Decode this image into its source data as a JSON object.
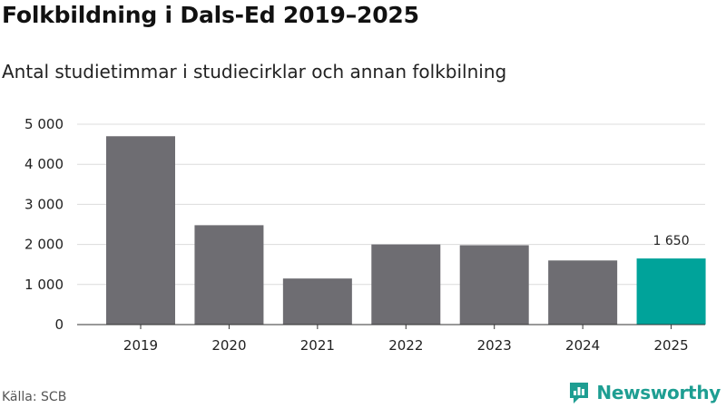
{
  "title": "Folkbildning i Dals-Ed 2019–2025",
  "subtitle": "Antal studietimmar i studiecirklar och annan folkbilning",
  "source": "Källa: SCB",
  "brand": {
    "name": "Newsworthy",
    "icon": "newsworthy-logo-icon",
    "color": "#1e9e92"
  },
  "colors": {
    "bar": "#6e6d72",
    "highlight": "#00a39a",
    "grid": "#dcdcdc",
    "axis": "#333333"
  },
  "chart_data": {
    "type": "bar",
    "title": "Folkbildning i Dals-Ed 2019–2025",
    "subtitle": "Antal studietimmar i studiecirklar och annan folkbilning",
    "xlabel": "",
    "ylabel": "",
    "categories": [
      "2019",
      "2020",
      "2021",
      "2022",
      "2023",
      "2024",
      "2025"
    ],
    "values": [
      4700,
      2480,
      1150,
      2000,
      1980,
      1600,
      1650
    ],
    "highlight_index": 6,
    "data_labels": [
      {
        "index": 6,
        "text": "1 650"
      }
    ],
    "ylim": [
      0,
      5000
    ],
    "yticks": [
      {
        "value": 0,
        "label": "0"
      },
      {
        "value": 1000,
        "label": "1 000"
      },
      {
        "value": 2000,
        "label": "2 000"
      },
      {
        "value": 3000,
        "label": "3 000"
      },
      {
        "value": 4000,
        "label": "4 000"
      },
      {
        "value": 5000,
        "label": "5 000"
      }
    ],
    "grid": true,
    "legend": "none"
  }
}
